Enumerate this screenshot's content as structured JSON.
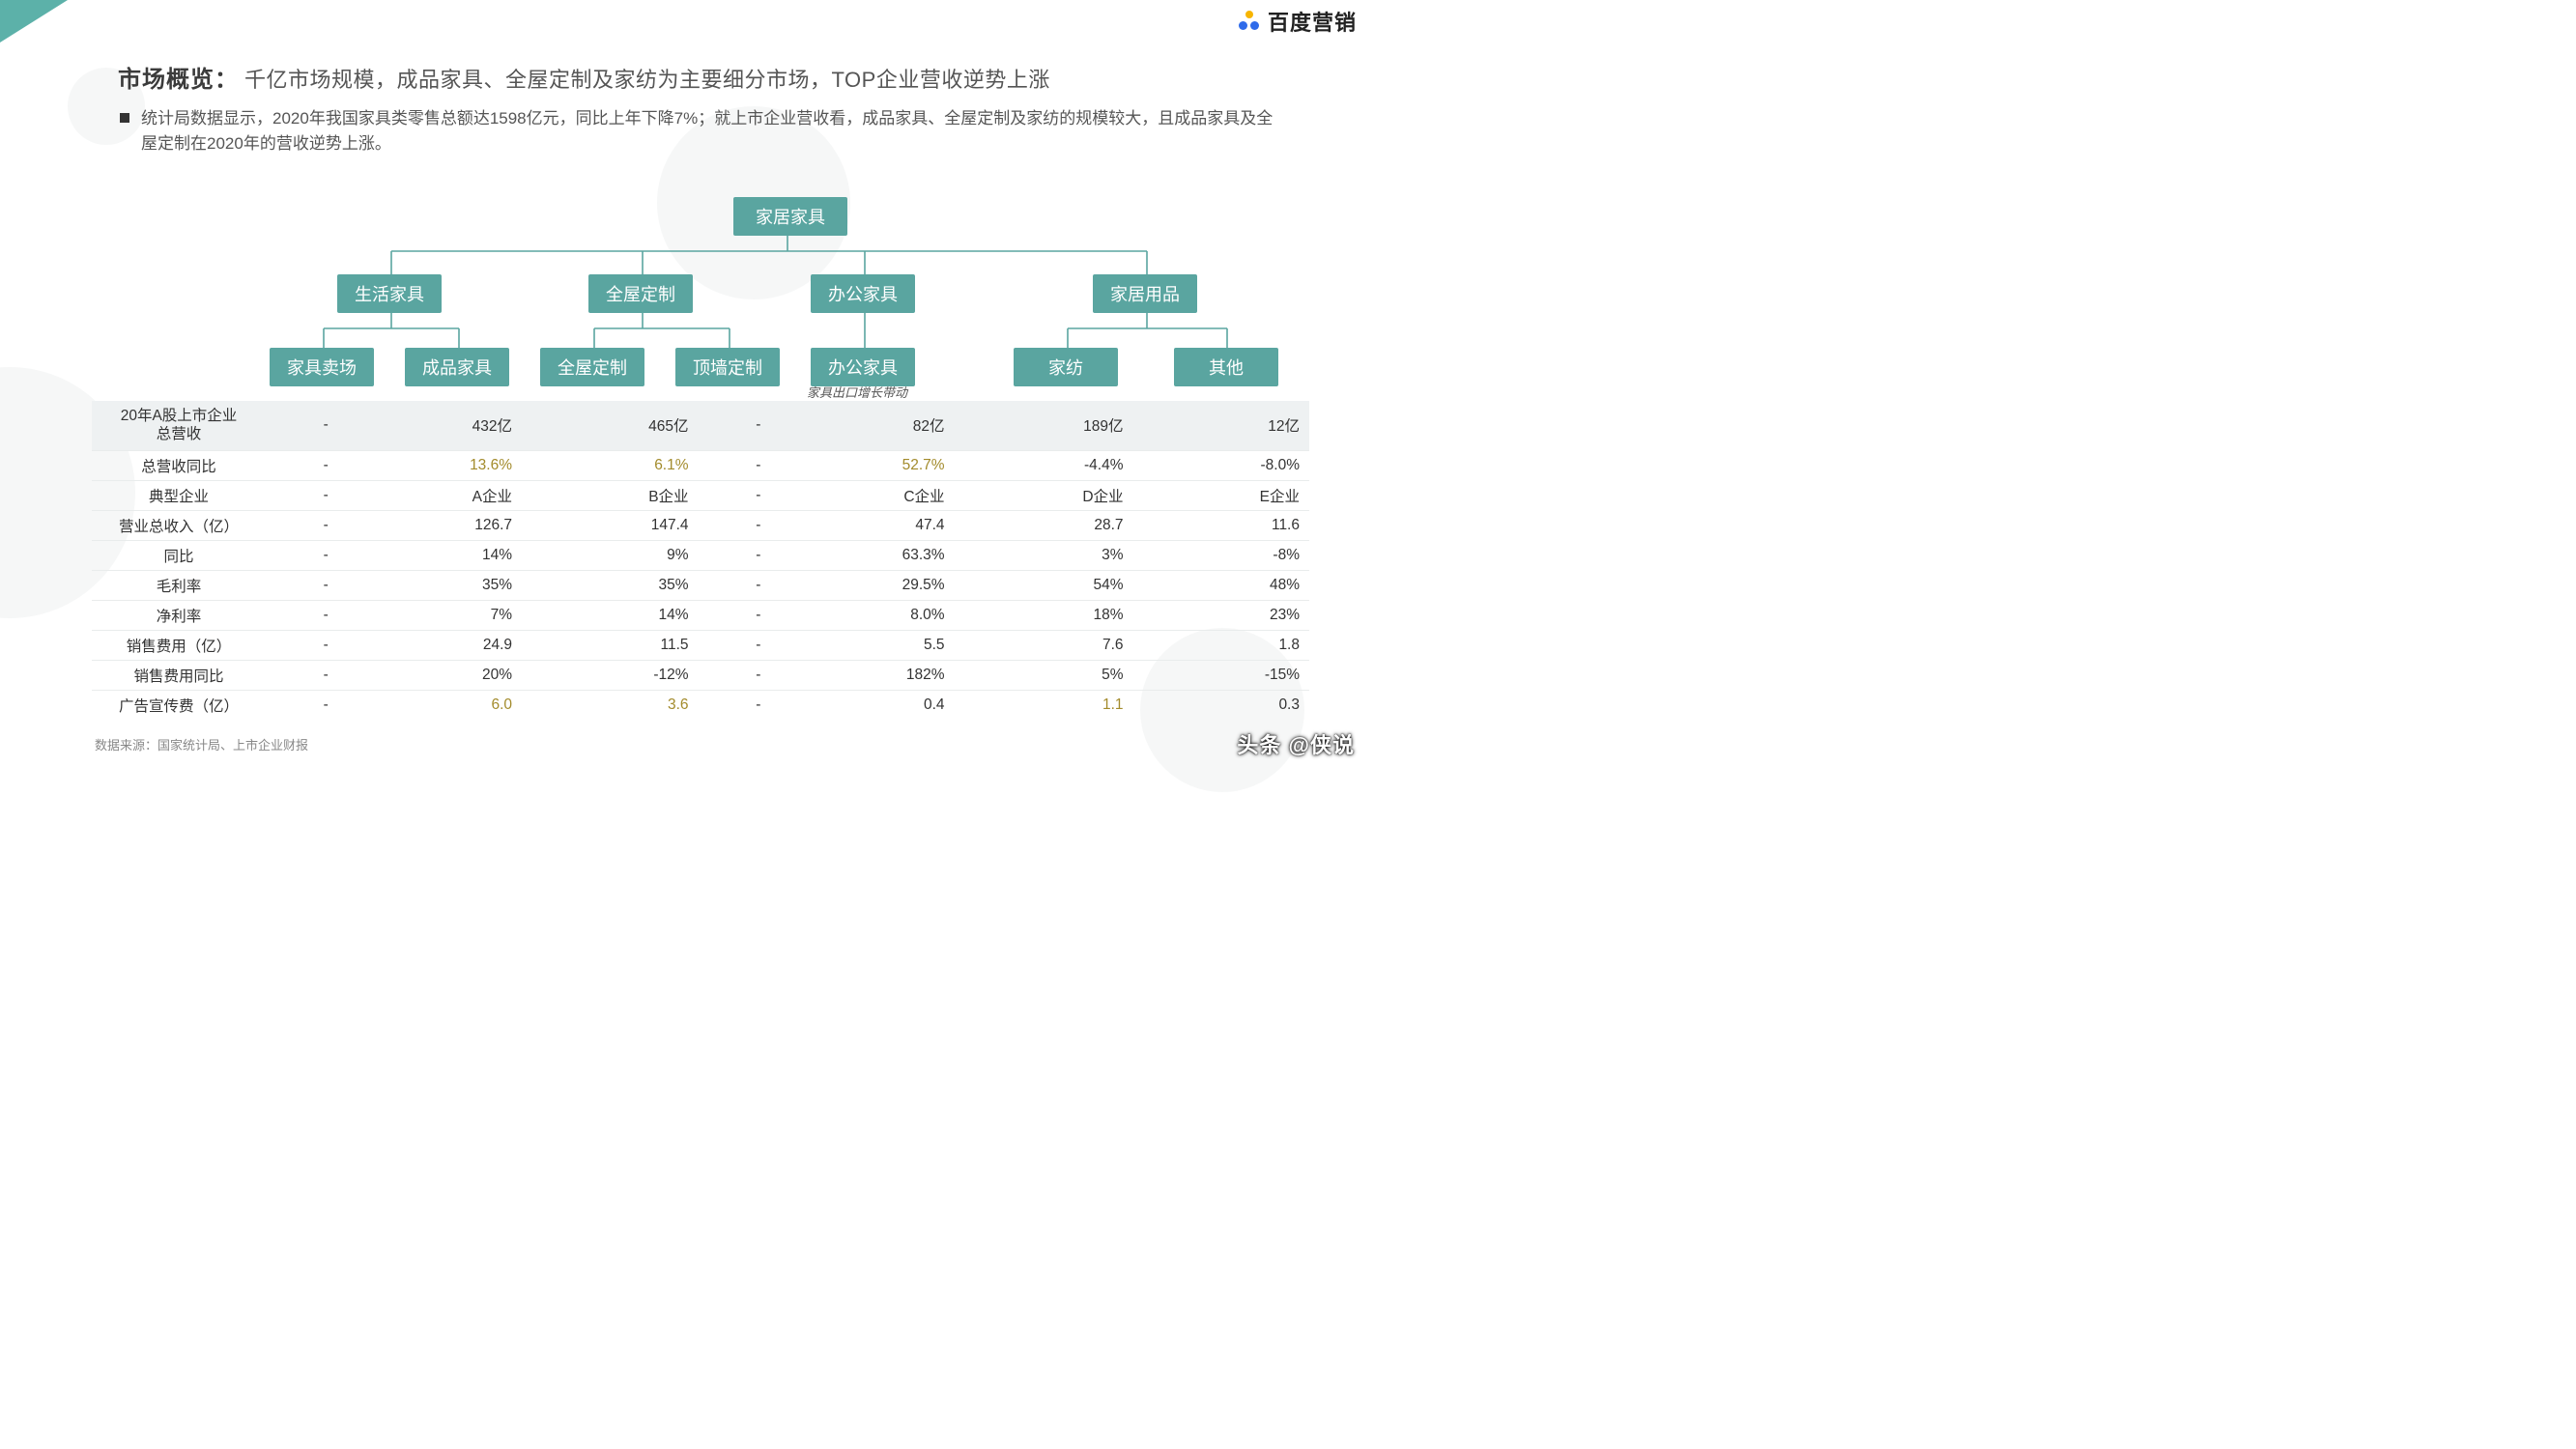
{
  "brand": {
    "text": "百度营销"
  },
  "title": {
    "lead": "市场概览：",
    "rest": "千亿市场规模，成品家具、全屋定制及家纺为主要细分市场，TOP企业营收逆势上涨"
  },
  "subtitle": "统计局数据显示，2020年我国家具类零售总额达1598亿元，同比上年下降7%；就上市企业营收看，成品家具、全屋定制及家纺的规模较大，且成品家具及全屋定制在2020年的营收逆势上涨。",
  "tree": {
    "node_color": "#5aa5a0",
    "line_color": "#5aa5a0",
    "root": "家居家具",
    "level2": [
      "生活家具",
      "全屋定制",
      "办公家具",
      "家居用品"
    ],
    "level3": [
      "家具卖场",
      "成品家具",
      "全屋定制",
      "顶墙定制",
      "办公家具",
      "家纺",
      "其他"
    ],
    "leaf_caption": "家具出口增长带动"
  },
  "table": {
    "highlight_color": "#a38b2c",
    "header_bg": "#eef1f2",
    "row_labels": [
      "20年A股上市企业\n总营收",
      "总营收同比",
      "典型企业",
      "营业总收入（亿）",
      "同比",
      "毛利率",
      "净利率",
      "销售费用（亿）",
      "销售费用同比",
      "广告宣传费（亿）"
    ],
    "cols": 7,
    "rows": [
      [
        "-",
        "432亿",
        "465亿",
        "-",
        "82亿",
        "189亿",
        "12亿"
      ],
      [
        "-",
        "13.6%",
        "6.1%",
        "-",
        "52.7%",
        "-4.4%",
        "-8.0%"
      ],
      [
        "-",
        "A企业",
        "B企业",
        "-",
        "C企业",
        "D企业",
        "E企业"
      ],
      [
        "-",
        "126.7",
        "147.4",
        "-",
        "47.4",
        "28.7",
        "11.6"
      ],
      [
        "-",
        "14%",
        "9%",
        "-",
        "63.3%",
        "3%",
        "-8%"
      ],
      [
        "-",
        "35%",
        "35%",
        "-",
        "29.5%",
        "54%",
        "48%"
      ],
      [
        "-",
        "7%",
        "14%",
        "-",
        "8.0%",
        "18%",
        "23%"
      ],
      [
        "-",
        "24.9",
        "11.5",
        "-",
        "5.5",
        "7.6",
        "1.8"
      ],
      [
        "-",
        "20%",
        "-12%",
        "-",
        "182%",
        "5%",
        "-15%"
      ],
      [
        "-",
        "6.0",
        "3.6",
        "-",
        "0.4",
        "1.1",
        "0.3"
      ]
    ],
    "highlight_cells": [
      [
        1,
        1
      ],
      [
        1,
        2
      ],
      [
        1,
        4
      ],
      [
        9,
        1
      ],
      [
        9,
        2
      ],
      [
        9,
        5
      ]
    ]
  },
  "source": "数据来源：国家统计局、上市企业财报",
  "watermark": "头条 @侠说"
}
